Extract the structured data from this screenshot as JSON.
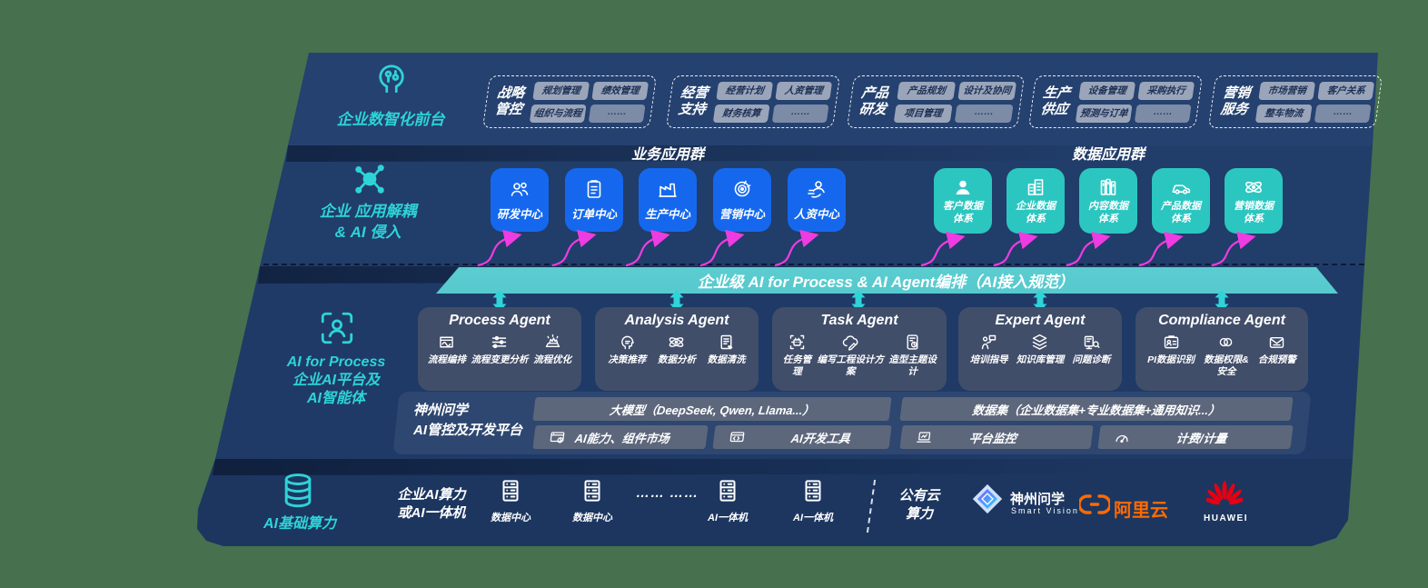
{
  "colors": {
    "background": "#47704F",
    "band_navy": "#1f3a66",
    "accent_teal": "#2ed3d8",
    "box_blue": "#1568ee",
    "box_teal": "#2cc6c1",
    "bar_gradient_top": "#9beaea",
    "bar_gradient_bottom": "#10a9b2",
    "arrow_magenta": "#ee3ce2",
    "pill_gray": "#9aa5ba",
    "alicloud_orange": "#ff6a00",
    "huawei_red": "#e60012"
  },
  "front_office": {
    "label": "企业数智化前台",
    "icon": "brain-icon",
    "groups": [
      {
        "label": "战略\n管控",
        "items": [
          "规划管理",
          "绩效管理",
          "组织与流程",
          "……"
        ]
      },
      {
        "label": "经营\n支持",
        "items": [
          "经营计划",
          "人资管理",
          "财务核算",
          "……"
        ]
      },
      {
        "label": "产品\n研发",
        "items": [
          "产品规划",
          "设计及协同",
          "项目管理",
          "……"
        ]
      },
      {
        "label": "生产\n供应",
        "items": [
          "设备管理",
          "采购执行",
          "预测与订单",
          "……"
        ]
      },
      {
        "label": "营销\n服务",
        "items": [
          "市场营销",
          "客户关系",
          "整车物流",
          "……"
        ]
      }
    ]
  },
  "app_layer": {
    "label": "企业 应用解耦\n& AI 侵入",
    "icon": "molecule-icon",
    "business_group": {
      "title": "业务应用群",
      "items": [
        {
          "label": "研发中心",
          "icon": "team-icon"
        },
        {
          "label": "订单中心",
          "icon": "clipboard-icon"
        },
        {
          "label": "生产中心",
          "icon": "factory-icon"
        },
        {
          "label": "营销中心",
          "icon": "target-icon"
        },
        {
          "label": "人资中心",
          "icon": "people-flow-icon"
        }
      ]
    },
    "data_group": {
      "title": "数据应用群",
      "items": [
        {
          "label": "客户数据\n体系",
          "icon": "person-icon"
        },
        {
          "label": "企业数据\n体系",
          "icon": "building-icon"
        },
        {
          "label": "内容数据\n体系",
          "icon": "books-icon"
        },
        {
          "label": "产品数据\n体系",
          "icon": "car-icon"
        },
        {
          "label": "营销数据\n体系",
          "icon": "atom-icon"
        }
      ]
    }
  },
  "ai_bar": {
    "label": "企业级 AI for Process & AI Agent编排（AI接入规范）"
  },
  "ai_layer": {
    "label_en": "AI for Process",
    "label_cn": "企业AI平台及\nAI智能体",
    "icon": "scan-person-icon",
    "agents": [
      {
        "title": "Process Agent",
        "items": [
          {
            "label": "流程编排",
            "icon": "flow-box-icon"
          },
          {
            "label": "流程变更分析",
            "icon": "sliders-icon"
          },
          {
            "label": "流程优化",
            "icon": "optimize-icon"
          }
        ]
      },
      {
        "title": "Analysis Agent",
        "items": [
          {
            "label": "决策推荐",
            "icon": "decision-icon"
          },
          {
            "label": "数据分析",
            "icon": "atom-icon"
          },
          {
            "label": "数据清洗",
            "icon": "doc-clean-icon"
          }
        ]
      },
      {
        "title": "Task Agent",
        "items": [
          {
            "label": "任务管理",
            "icon": "robot-grid-icon"
          },
          {
            "label": "编写工程设计方案",
            "icon": "cloud-pen-icon"
          },
          {
            "label": "造型主题设计",
            "icon": "design-card-icon"
          }
        ]
      },
      {
        "title": "Expert Agent",
        "items": [
          {
            "label": "培训指导",
            "icon": "training-icon"
          },
          {
            "label": "知识库管理",
            "icon": "layers-icon"
          },
          {
            "label": "问题诊断",
            "icon": "diagnose-icon"
          }
        ]
      },
      {
        "title": "Compliance Agent",
        "items": [
          {
            "label": "PI数据识别",
            "icon": "idcard-icon"
          },
          {
            "label": "数据权限&\n安全",
            "icon": "permission-icon"
          },
          {
            "label": "合规预警",
            "icon": "alert-mail-icon"
          }
        ]
      }
    ],
    "platform": {
      "label": "神州问学\nAI管控及开发平台",
      "model_bar": "大模型（DeepSeek, Qwen, Llama...）",
      "dataset_bar": "数据集（企业数据集+专业数据集+通用知识...）",
      "tools": [
        {
          "label": "AI能力、组件市场",
          "icon": "component-market-icon"
        },
        {
          "label": "AI开发工具",
          "icon": "devtools-icon"
        },
        {
          "label": "平台监控",
          "icon": "monitor-icon"
        },
        {
          "label": "计费/计量",
          "icon": "meter-icon"
        }
      ]
    }
  },
  "infra": {
    "label": "AI基础算力",
    "icon": "database-icon",
    "compute_label": "企业AI算力\n或AI一体机",
    "ellipsis": "…… ……",
    "nodes": [
      {
        "label": "数据中心",
        "icon": "server-icon"
      },
      {
        "label": "数据中心",
        "icon": "server-icon"
      },
      {
        "label": "AI一体机",
        "icon": "server-icon"
      },
      {
        "label": "AI一体机",
        "icon": "server-icon"
      }
    ],
    "public_cloud": "公有云\n算力",
    "logos": [
      {
        "name": "神州问学",
        "sub": "Smart Vision"
      },
      {
        "name": "阿里云"
      },
      {
        "name": "HUAWEI"
      }
    ]
  }
}
